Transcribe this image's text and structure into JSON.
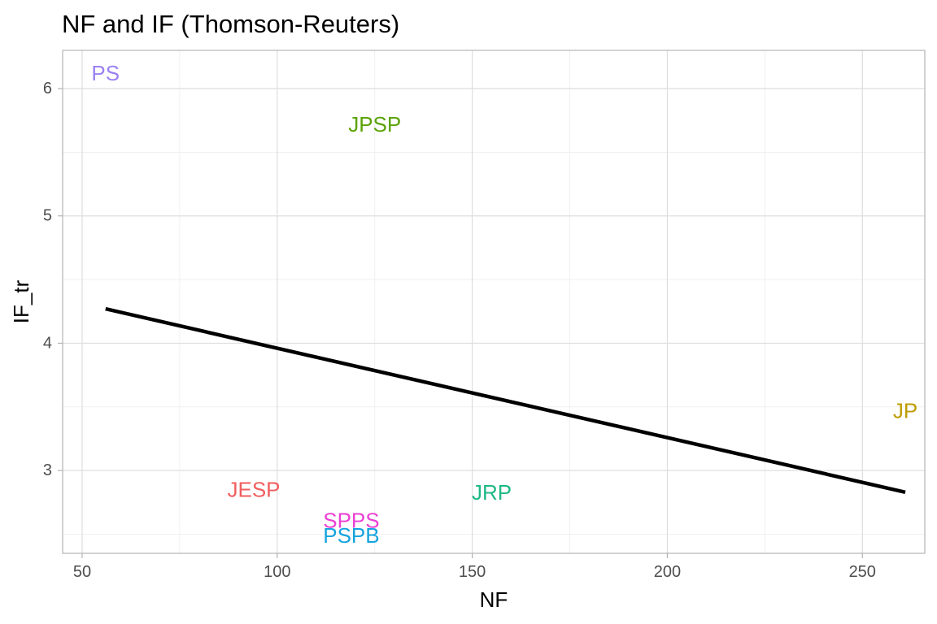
{
  "chart_data": {
    "type": "scatter",
    "title": "NF and IF (Thomson-Reuters)",
    "xlabel": "NF",
    "ylabel": "IF_tr",
    "xlim": [
      45,
      266
    ],
    "ylim": [
      2.35,
      6.3
    ],
    "x_ticks": [
      50,
      100,
      150,
      200,
      250
    ],
    "y_ticks": [
      3,
      4,
      5,
      6
    ],
    "x_minor_ticks": [
      75,
      125,
      175,
      225
    ],
    "y_minor_ticks": [
      2.5,
      3.5,
      4.5,
      5.5
    ],
    "grid": true,
    "legend": "none",
    "points": [
      {
        "label": "PS",
        "x": 56,
        "y": 6.12,
        "color": "#9B81F3"
      },
      {
        "label": "JPSP",
        "x": 125,
        "y": 5.72,
        "color": "#5BA305"
      },
      {
        "label": "JP",
        "x": 261,
        "y": 3.47,
        "color": "#BE9C00"
      },
      {
        "label": "JESP",
        "x": 94,
        "y": 2.85,
        "color": "#F15D5E"
      },
      {
        "label": "JRP",
        "x": 155,
        "y": 2.83,
        "color": "#1EB886"
      },
      {
        "label": "SPPS",
        "x": 119,
        "y": 2.61,
        "color": "#EC3FD4"
      },
      {
        "label": "PSPB",
        "x": 119,
        "y": 2.49,
        "color": "#14A3DD"
      }
    ],
    "trend_line": {
      "type": "linear",
      "x": [
        56,
        261
      ],
      "y": [
        4.27,
        2.83
      ],
      "color": "#000000"
    }
  }
}
